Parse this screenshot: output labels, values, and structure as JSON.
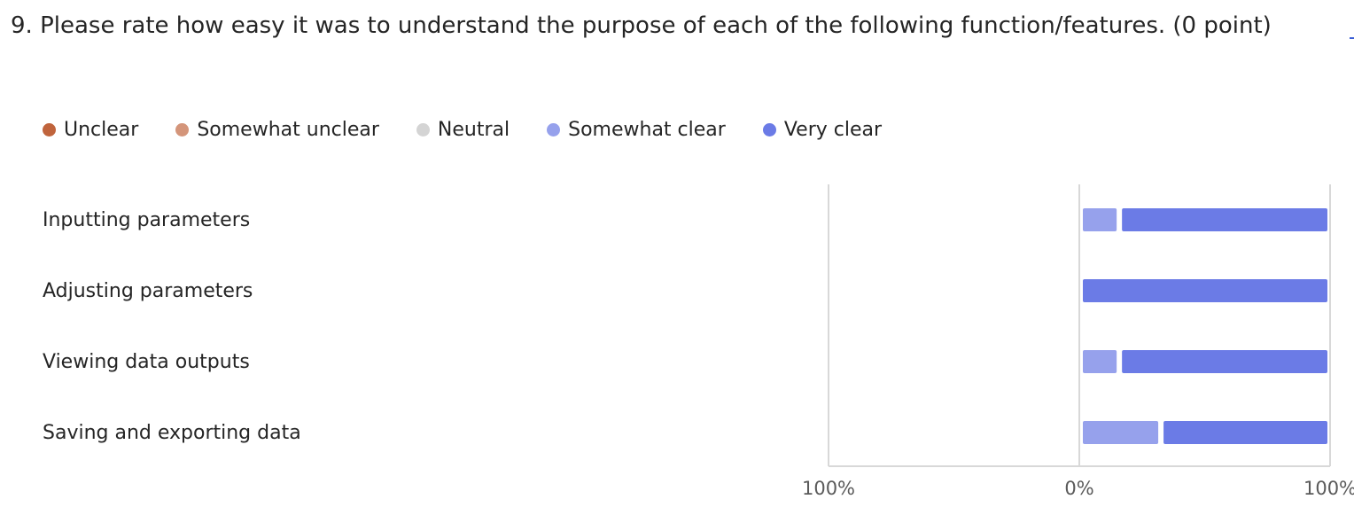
{
  "question": {
    "text": "9. Please rate how easy it was to understand the purpose of each of the following function/features. (0 point)"
  },
  "colors": {
    "unclear": "#c0643c",
    "somewhat_unclear": "#d4957a",
    "neutral": "#d4d4d4",
    "somewhat_clear": "#96a1ec",
    "very_clear": "#6b7be6",
    "axis": "#d8d8d8",
    "tick_text": "#5a5a5a"
  },
  "chart_data": {
    "type": "bar",
    "orientation": "horizontal",
    "stacked": true,
    "diverging": true,
    "categories": [
      "Inputting parameters",
      "Adjusting parameters",
      "Viewing data outputs",
      "Saving and exporting data"
    ],
    "series": [
      {
        "name": "Unclear",
        "color": "#c0643c",
        "values": [
          0,
          0,
          0,
          0
        ]
      },
      {
        "name": "Somewhat unclear",
        "color": "#d4957a",
        "values": [
          0,
          0,
          0,
          0
        ]
      },
      {
        "name": "Neutral",
        "color": "#d4d4d4",
        "values": [
          0,
          0,
          0,
          0
        ]
      },
      {
        "name": "Somewhat clear",
        "color": "#96a1ec",
        "values": [
          16,
          0,
          16,
          33
        ]
      },
      {
        "name": "Very clear",
        "color": "#6b7be6",
        "values": [
          84,
          100,
          84,
          67
        ]
      }
    ],
    "x_ticks": [
      "100%",
      "0%",
      "100%"
    ],
    "xlim": [
      -100,
      100
    ],
    "legend_position": "top",
    "grid": true
  }
}
